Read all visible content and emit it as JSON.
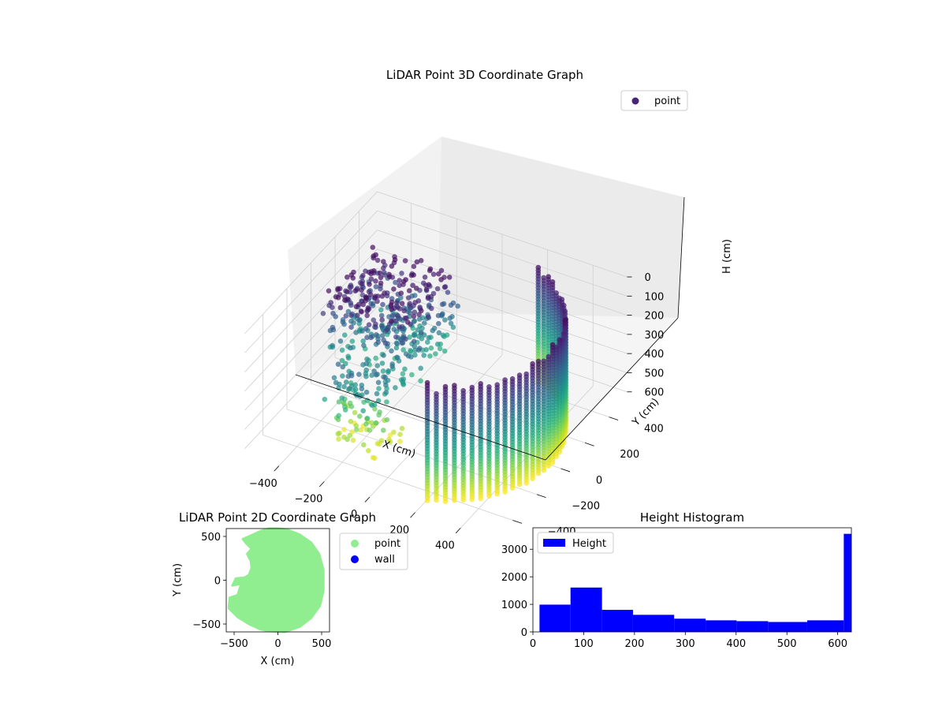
{
  "figure": {
    "background": "#ffffff"
  },
  "chart_data": [
    {
      "type": "scatter",
      "subtype": "3d",
      "title": "LiDAR Point 3D Coordinate Graph",
      "xlabel": "X (cm)",
      "ylabel": "Y (cm)",
      "zlabel": "H (cm)",
      "xticks": [
        "−400",
        "−200",
        "0",
        "200",
        "400"
      ],
      "yticks": [
        "−400",
        "−200",
        "0",
        "200",
        "400"
      ],
      "zticks": [
        "0",
        "100",
        "200",
        "300",
        "400",
        "500",
        "600"
      ],
      "xlim": [
        -550,
        550
      ],
      "ylim": [
        -550,
        550
      ],
      "zlim": [
        0,
        630
      ],
      "z_inverted": true,
      "colormap": "viridis",
      "legend": {
        "label": "point",
        "placement": "top-right",
        "marker_color": "#482677"
      },
      "description_points": "wall ring of radius ~500 cm from y=-450 to y=450 on the +x side, plus scattered points near x=-400..-100",
      "grid": true
    },
    {
      "type": "scatter",
      "title": "LiDAR Point 2D Coordinate Graph",
      "xlabel": "X (cm)",
      "ylabel": "Y (cm)",
      "xticks": [
        "−500",
        "0",
        "500"
      ],
      "yticks": [
        "500",
        "0",
        "−500"
      ],
      "xlim": [
        -590,
        590
      ],
      "ylim": [
        -590,
        590
      ],
      "series": [
        {
          "name": "point",
          "color": "#90ee90"
        },
        {
          "name": "wall",
          "color": "#0000ff"
        }
      ],
      "legend_placement": "outside-right"
    },
    {
      "type": "bar",
      "subtype": "histogram",
      "title": "Height Histogram",
      "xticks": [
        "0",
        "100",
        "200",
        "300",
        "400",
        "500",
        "600"
      ],
      "yticks": [
        "0",
        "1000",
        "2000",
        "3000"
      ],
      "xlim": [
        0,
        627
      ],
      "ylim": [
        0,
        3780
      ],
      "bin_edges": [
        13,
        74,
        136,
        197,
        278,
        340,
        401,
        463,
        540,
        612,
        627
      ],
      "values": [
        990,
        1610,
        800,
        620,
        480,
        420,
        390,
        360,
        420,
        3560
      ],
      "color": "#0000ff",
      "series": [
        {
          "name": "Height"
        }
      ],
      "legend_placement": "top-left"
    }
  ]
}
